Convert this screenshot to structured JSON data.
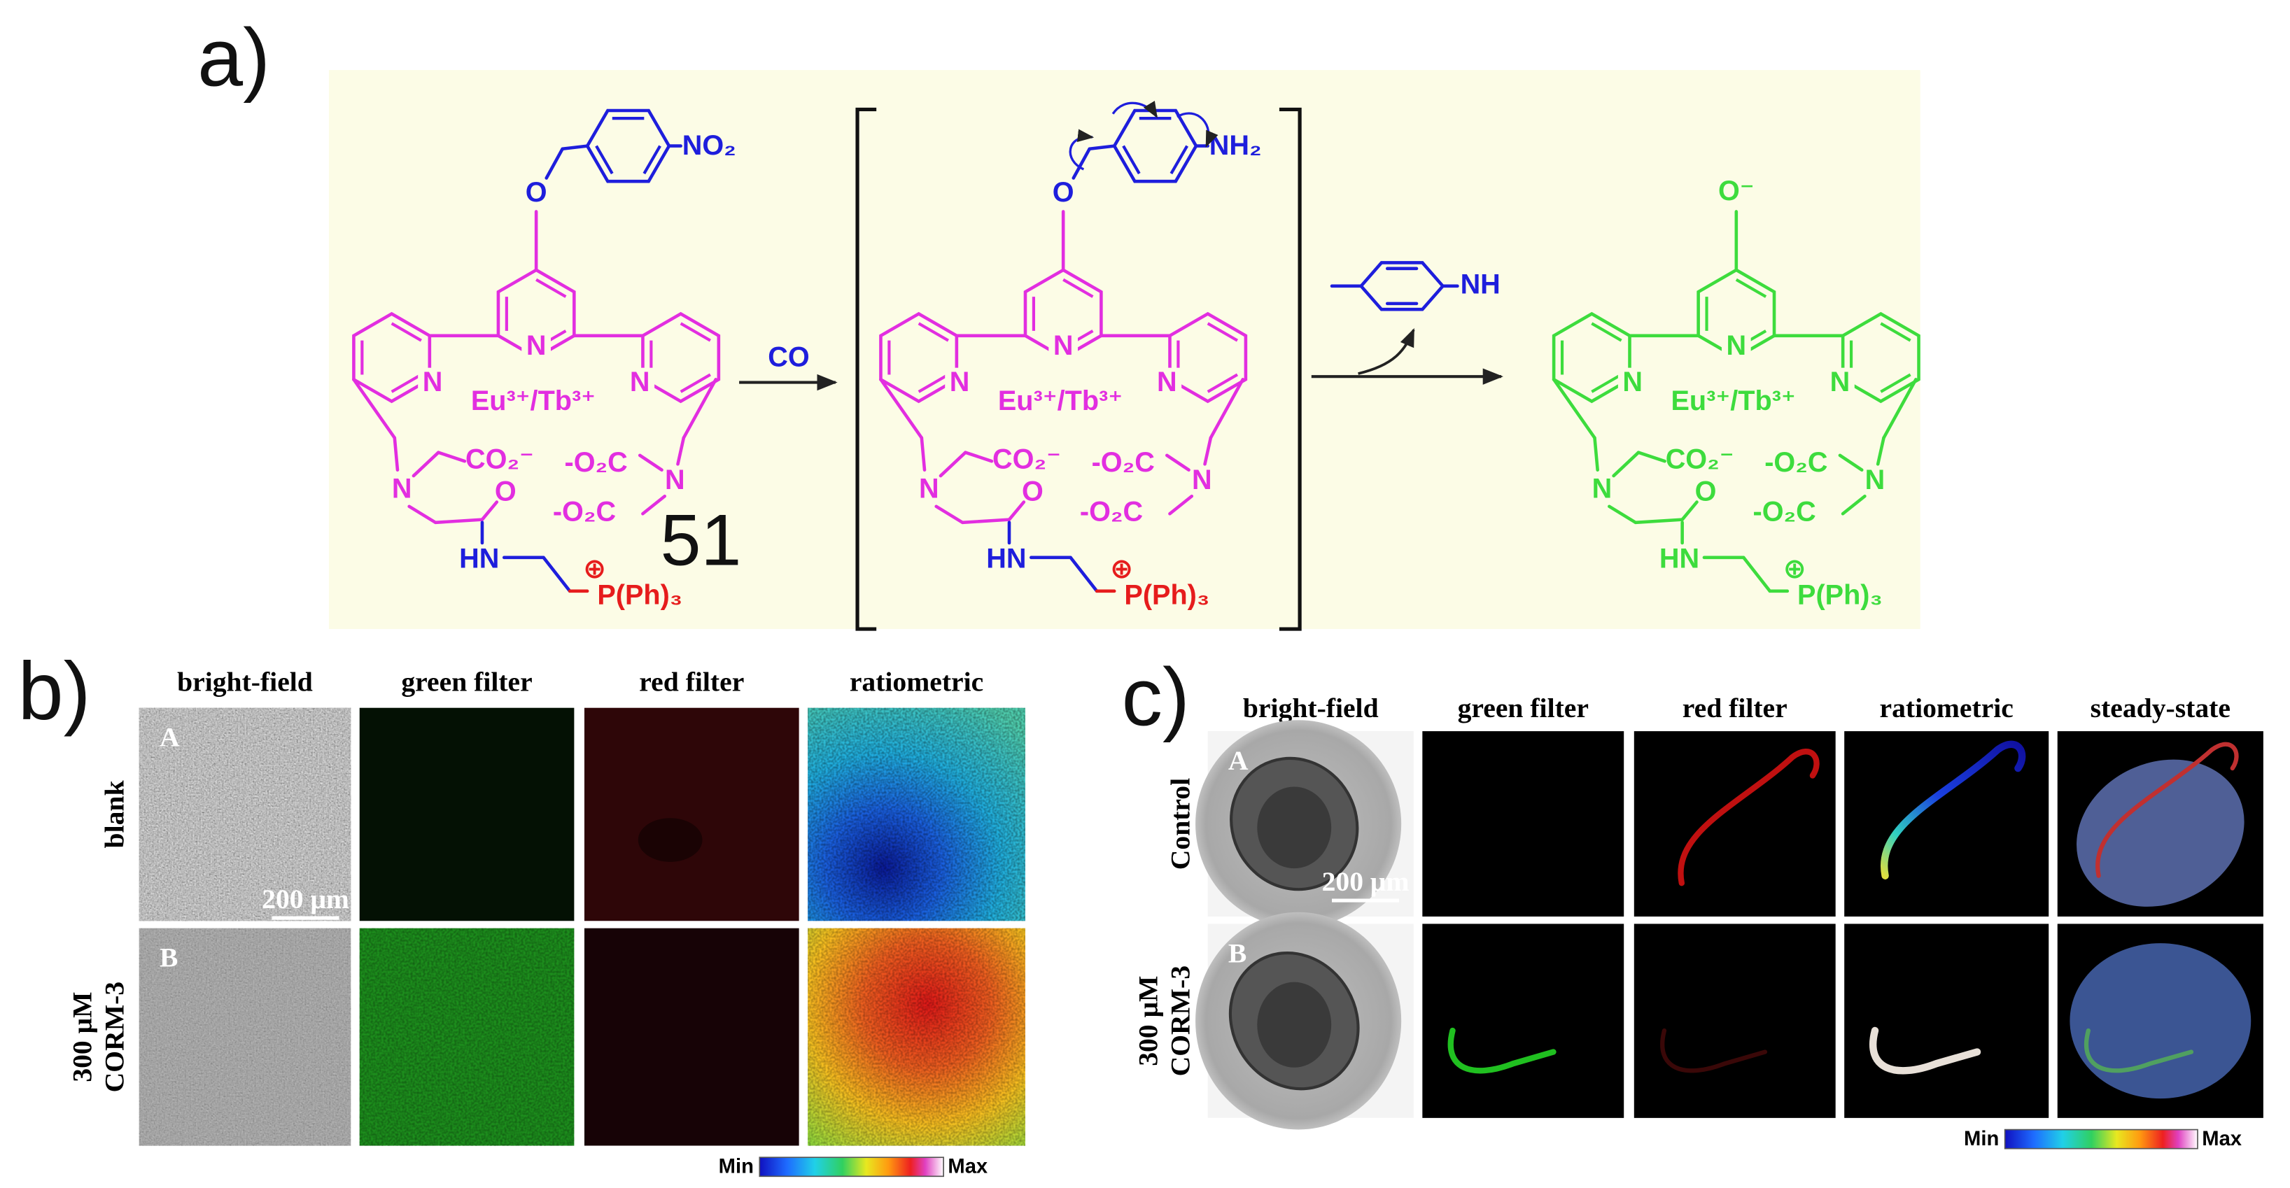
{
  "panel_a": {
    "label": "a)",
    "reagent": "CO",
    "byproduct": "NH",
    "compound_number": "51",
    "structures": [
      {
        "top": "NO₂",
        "ether": "O",
        "metal": "Eu³⁺/Tb³⁺",
        "n_left": "N",
        "n_center": "N",
        "n_right": "N",
        "carboxylate": "CO₂⁻",
        "ester_upper": "-O₂C",
        "ester_lower": "-O₂C",
        "amine_left": "N",
        "amine_right": "N",
        "carbonyl": "O",
        "amide": "HN",
        "phosphonium": "P(Ph)₃",
        "charge": "⊕"
      },
      {
        "top": "NH₂",
        "ether": "O",
        "metal": "Eu³⁺/Tb³⁺",
        "n_left": "N",
        "n_center": "N",
        "n_right": "N",
        "carboxylate": "CO₂⁻",
        "ester_upper": "-O₂C",
        "ester_lower": "-O₂C",
        "amine_left": "N",
        "amine_right": "N",
        "carbonyl": "O",
        "amide": "HN",
        "phosphonium": "P(Ph)₃",
        "charge": "⊕"
      },
      {
        "top": "O⁻",
        "metal": "Eu³⁺/Tb³⁺",
        "n_left": "N",
        "n_center": "N",
        "n_right": "N",
        "carboxylate": "CO₂⁻",
        "ester_upper": "-O₂C",
        "ester_lower": "-O₂C",
        "amine_left": "N",
        "amine_right": "N",
        "carbonyl": "O",
        "amide": "HN",
        "phosphonium": "P(Ph)₃",
        "charge": "⊕"
      }
    ]
  },
  "panel_b": {
    "label": "b)",
    "columns": [
      "bright-field",
      "green filter",
      "red filter",
      "ratiometric"
    ],
    "rows": [
      [
        "blank"
      ],
      [
        "300 μM",
        "CORM-3"
      ]
    ],
    "row_letters": [
      "A",
      "B"
    ],
    "scale_bar": "200 μm",
    "colorbar": {
      "min": "Min",
      "max": "Max"
    }
  },
  "panel_c": {
    "label": "c)",
    "columns": [
      "bright-field",
      "green filter",
      "red filter",
      "ratiometric",
      "steady-state"
    ],
    "rows": [
      [
        "Control"
      ],
      [
        "300 μM",
        "CORM-3"
      ]
    ],
    "row_letters": [
      "A",
      "B"
    ],
    "scale_bar": "200 μm",
    "colorbar": {
      "min": "Min",
      "max": "Max"
    }
  }
}
